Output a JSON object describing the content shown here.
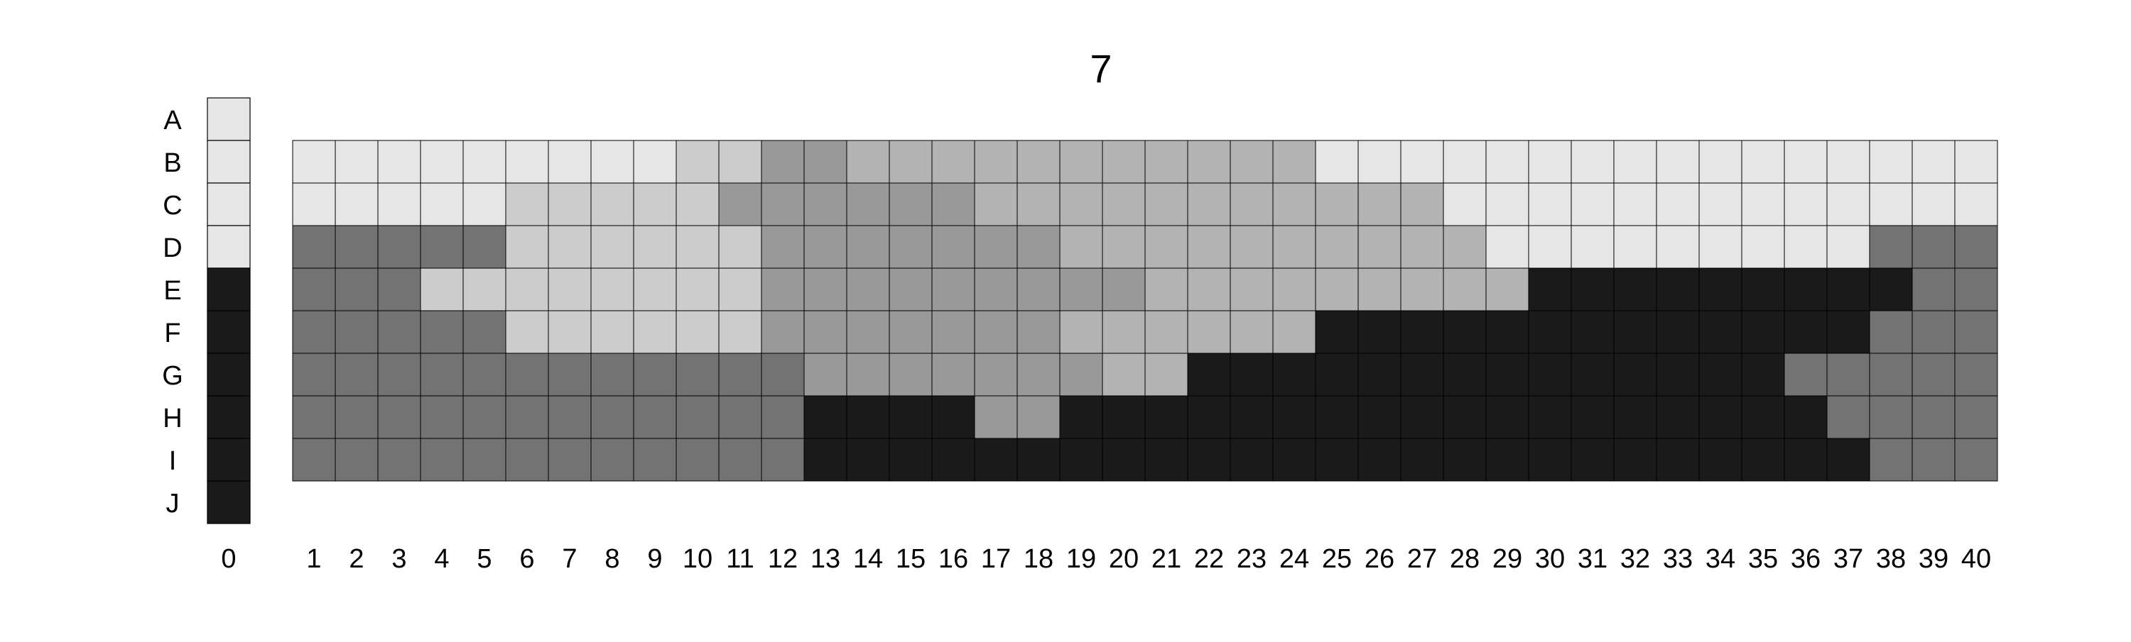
{
  "chart_data": {
    "type": "heatmap",
    "title": "7",
    "row_labels": [
      "A",
      "B",
      "C",
      "D",
      "E",
      "F",
      "G",
      "H",
      "I",
      "J"
    ],
    "key_column": {
      "label": "0",
      "cells": [
        "#e6e6e6",
        "#e6e6e6",
        "#e6e6e6",
        "#e6e6e6",
        "#1a1a1a",
        "#1a1a1a",
        "#1a1a1a",
        "#1a1a1a",
        "#1a1a1a",
        "#1a1a1a"
      ]
    },
    "columns": [
      "1",
      "2",
      "3",
      "4",
      "5",
      "6",
      "7",
      "8",
      "9",
      "10",
      "11",
      "12",
      "13",
      "14",
      "15",
      "16",
      "17",
      "18",
      "19",
      "20",
      "21",
      "22",
      "23",
      "24",
      "25",
      "26",
      "27",
      "28",
      "29",
      "30",
      "31",
      "32",
      "33",
      "34",
      "35",
      "36",
      "37",
      "38",
      "39",
      "40"
    ],
    "grid_rows": [
      "B",
      "C",
      "D",
      "E",
      "F",
      "G",
      "H",
      "I"
    ],
    "palette": {
      "a": "#e6e6e6",
      "b": "#cccccc",
      "c": "#b3b3b3",
      "d": "#999999",
      "e": "#737373",
      "f": "#1a1a1a"
    },
    "grid": [
      "aaaaaaaaabbddcccccccccccaaaaaaaaaaaaaaaa",
      "aaaaabbbbbddddddcccccccccccaaaaaaaaaaaaa",
      "eeeeebbbbbbdddddddccccccccccaaaaaaaaaeee",
      "eeebbbbbbbbdddddddddcccccccccfffffffffeee",
      "eeeeebbbbbbdddddddccccccfffffffffffffeeee",
      "eeeeeeeeeeeedddddddccffffffffffffffeeeeee",
      "eeeeeeeeeeeeffffddffffffffffffffffffeeeee",
      "eeeeeeeeeeeefffffffffffffffffffffffffeeee"
    ]
  }
}
